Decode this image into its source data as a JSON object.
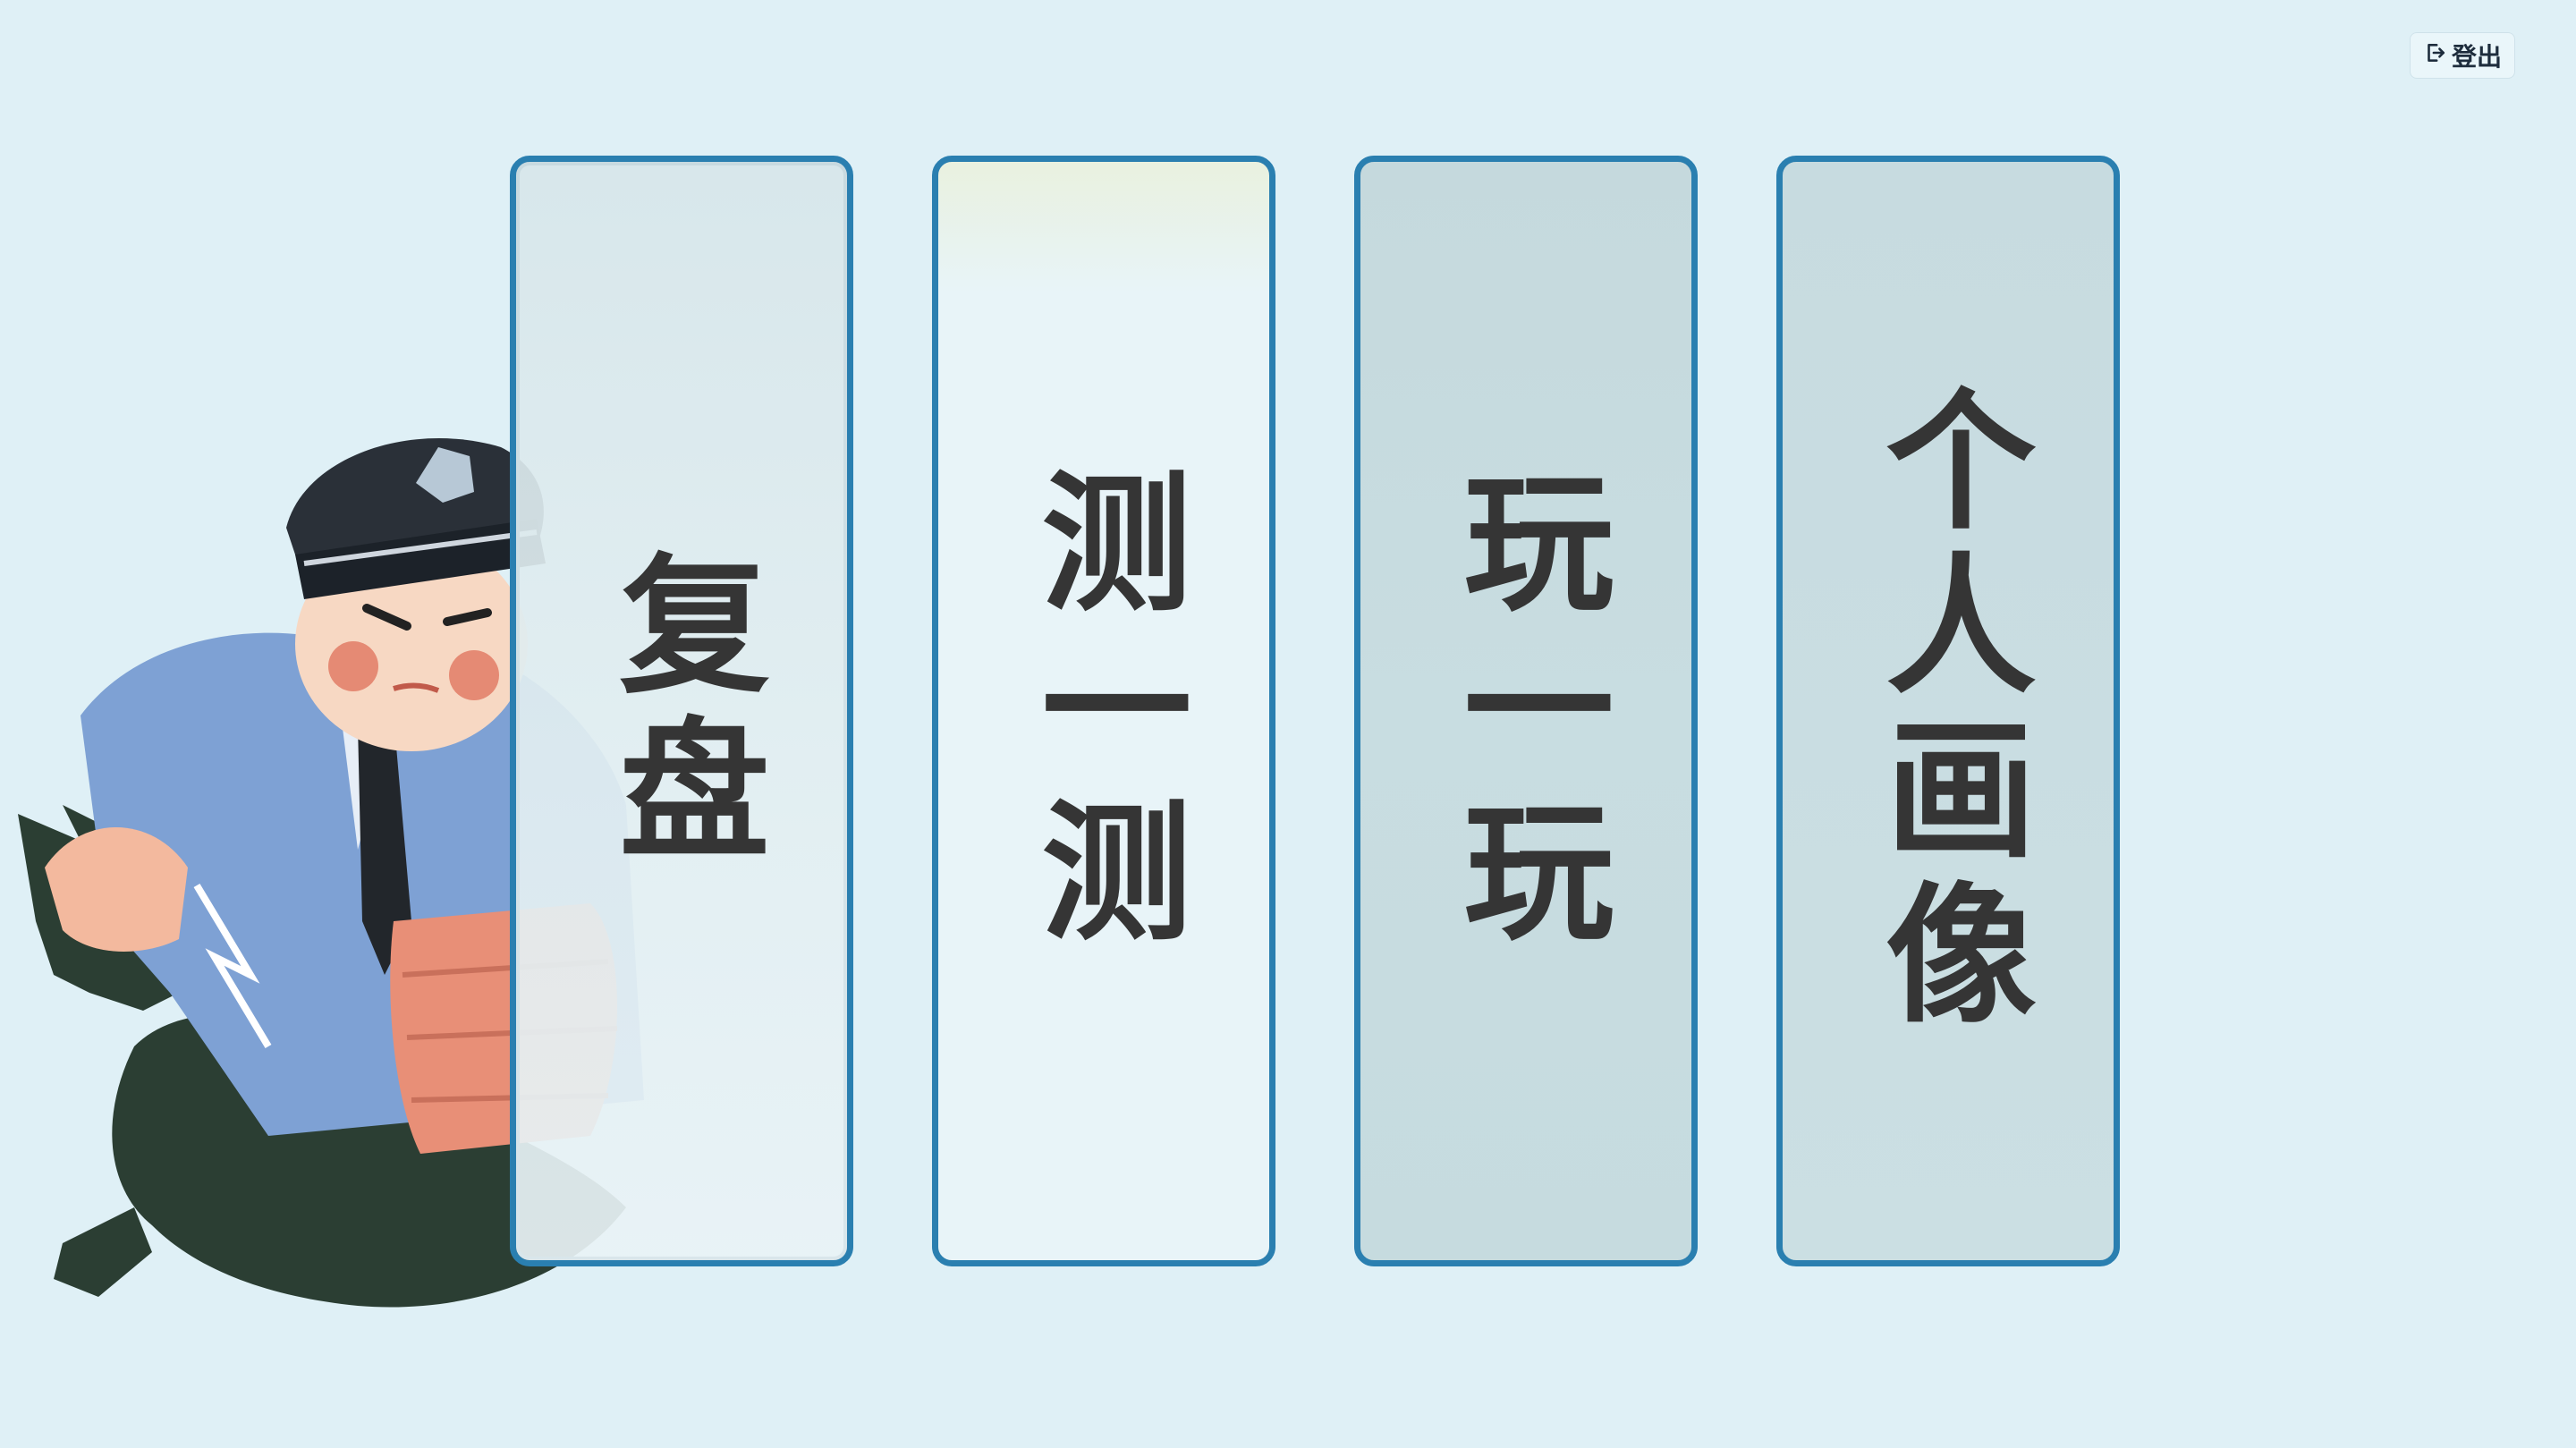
{
  "header": {
    "logout_label": "登出",
    "logout_icon": "logout-icon"
  },
  "cards": [
    {
      "id": "review",
      "label": "复盘",
      "bg_color": "#e6f2f6"
    },
    {
      "id": "test",
      "label": "测一测",
      "bg_color": "#e8f4f8"
    },
    {
      "id": "play",
      "label": "玩一玩",
      "bg_color": "#c8dde1"
    },
    {
      "id": "profile",
      "label": "个人画像",
      "bg_color": "#c9dde1"
    }
  ],
  "illustration": {
    "name": "police-officer-illustration"
  },
  "colors": {
    "page_bg": "#dff0f6",
    "card_border": "#2a7fb0",
    "card_text": "#353535"
  }
}
